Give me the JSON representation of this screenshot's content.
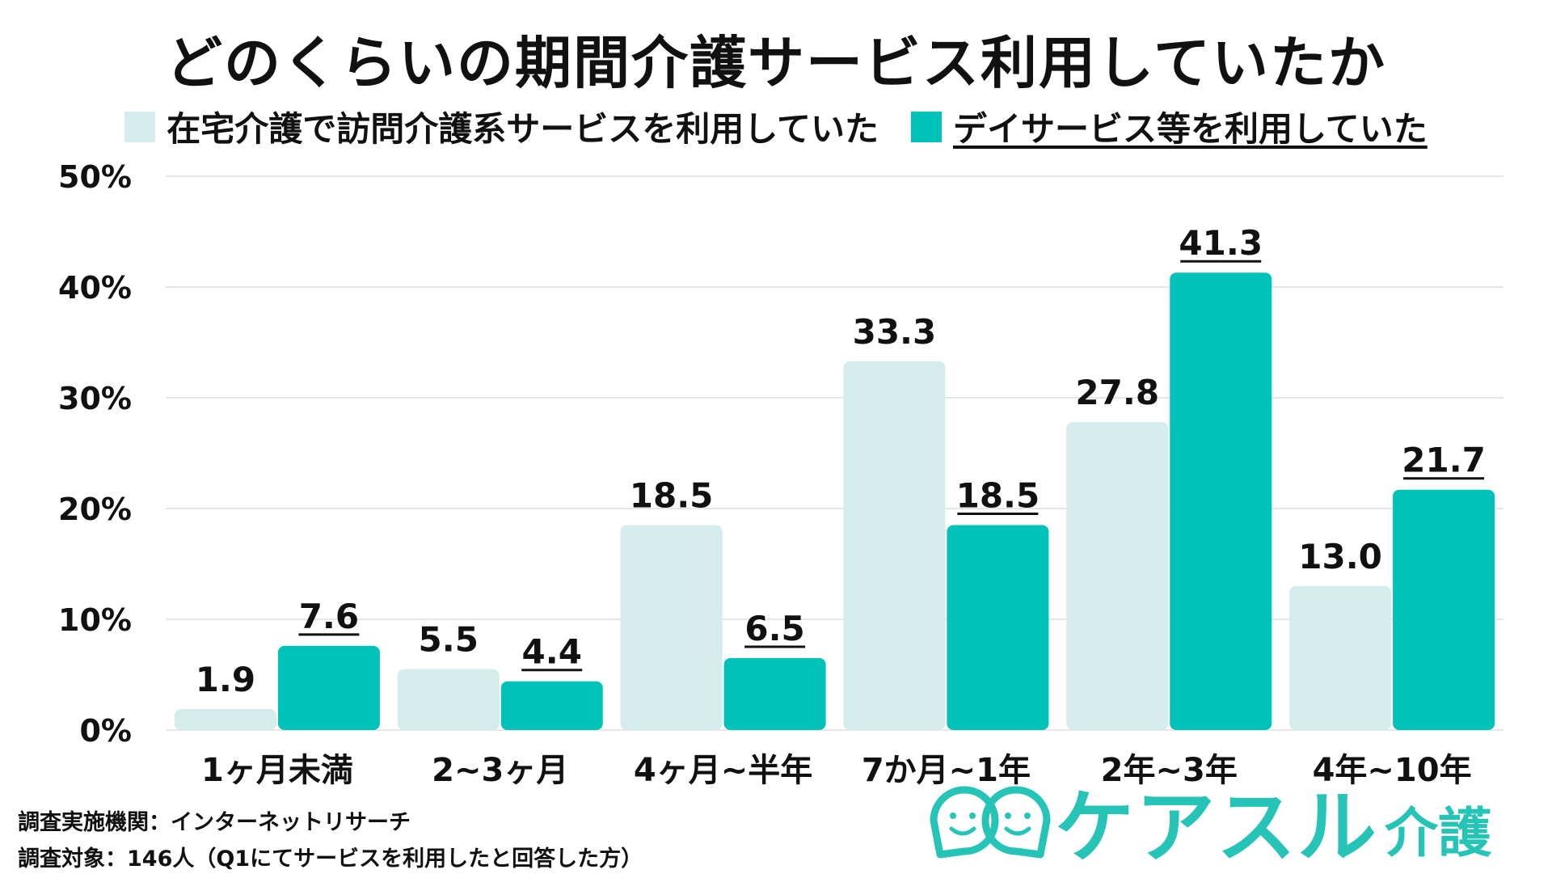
{
  "colors": {
    "series1": "#d4ecec",
    "series2": "#00c2b9",
    "grid": "#e6e6e6",
    "logo": "#26c4b7"
  },
  "chart_data": {
    "type": "bar",
    "title": "どのくらいの期間介護サービス利用していたか",
    "categories": [
      "1ヶ月未満",
      "2~3ヶ月",
      "4ヶ月~半年",
      "7か月~1年",
      "2年~3年",
      "4年~10年"
    ],
    "series": [
      {
        "name": "在宅介護で訪問介護系サービスを利用していた",
        "values": [
          1.9,
          5.5,
          18.5,
          33.3,
          27.8,
          13.0
        ],
        "labels": [
          "1.9",
          "5.5",
          "18.5",
          "33.3",
          "27.8",
          "13.0"
        ]
      },
      {
        "name": "デイサービス等を利用していた",
        "values": [
          7.6,
          4.4,
          6.5,
          18.5,
          41.3,
          21.7
        ],
        "labels": [
          "7.6",
          "4.4",
          "6.5",
          "18.5",
          "41.3",
          "21.7"
        ]
      }
    ],
    "yticks": [
      "0%",
      "10%",
      "20%",
      "30%",
      "40%",
      "50%"
    ],
    "ylim": [
      0,
      50
    ],
    "xlabel": "",
    "ylabel": "",
    "grid": true,
    "legend_position": "top"
  },
  "footer": {
    "line1": "調査実施機関：インターネットリサーチ",
    "line2": "調査対象：146人（Q1にてサービスを利用したと回答した方）"
  },
  "logo": {
    "main": "ケアスル",
    "sub": "介護",
    "icon": "smiley-speech-bubbles-icon"
  }
}
